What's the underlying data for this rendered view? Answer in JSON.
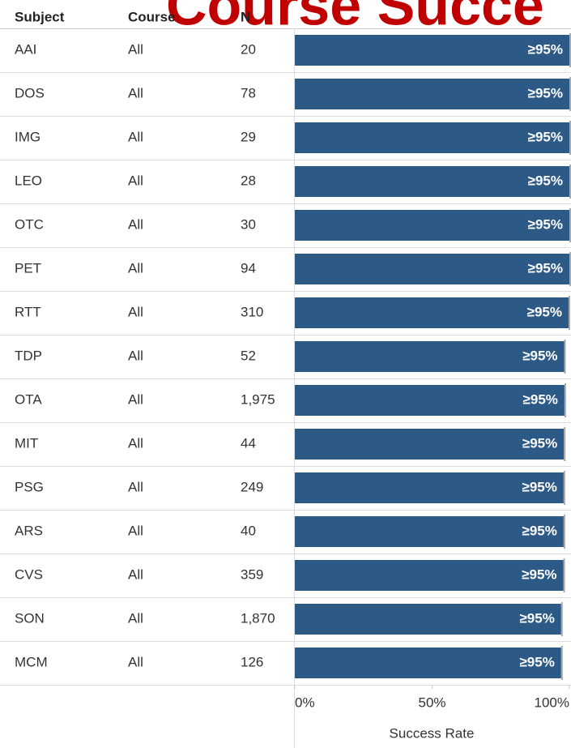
{
  "chart_data": {
    "type": "bar",
    "title": "Course Succe",
    "columns": [
      "Subject",
      "Course",
      "N"
    ],
    "categories": [
      "AAI",
      "DOS",
      "IMG",
      "LEO",
      "OTC",
      "PET",
      "RTT",
      "TDP",
      "OTA",
      "MIT",
      "PSG",
      "ARS",
      "CVS",
      "SON",
      "MCM"
    ],
    "course": [
      "All",
      "All",
      "All",
      "All",
      "All",
      "All",
      "All",
      "All",
      "All",
      "All",
      "All",
      "All",
      "All",
      "All",
      "All"
    ],
    "n": [
      "20",
      "78",
      "29",
      "28",
      "30",
      "94",
      "310",
      "52",
      "1,975",
      "44",
      "249",
      "40",
      "359",
      "1,870",
      "126"
    ],
    "values": [
      100,
      100,
      100,
      100,
      100,
      100,
      99.7,
      98.1,
      98.2,
      98.0,
      97.9,
      97.9,
      97.8,
      97.0,
      97.0
    ],
    "value_labels": [
      "≥95%",
      "≥95%",
      "≥95%",
      "≥95%",
      "≥95%",
      "≥95%",
      "≥95%",
      "≥95%",
      "≥95%",
      "≥95%",
      "≥95%",
      "≥95%",
      "≥95%",
      "≥95%",
      "≥95%"
    ],
    "color": "#2c5985",
    "xlim": [
      0,
      100
    ],
    "xticks": [
      {
        "value": 0,
        "label": "0%"
      },
      {
        "value": 50,
        "label": "50%"
      },
      {
        "value": 100,
        "label": "100%"
      }
    ],
    "xlabel": "Success Rate"
  }
}
